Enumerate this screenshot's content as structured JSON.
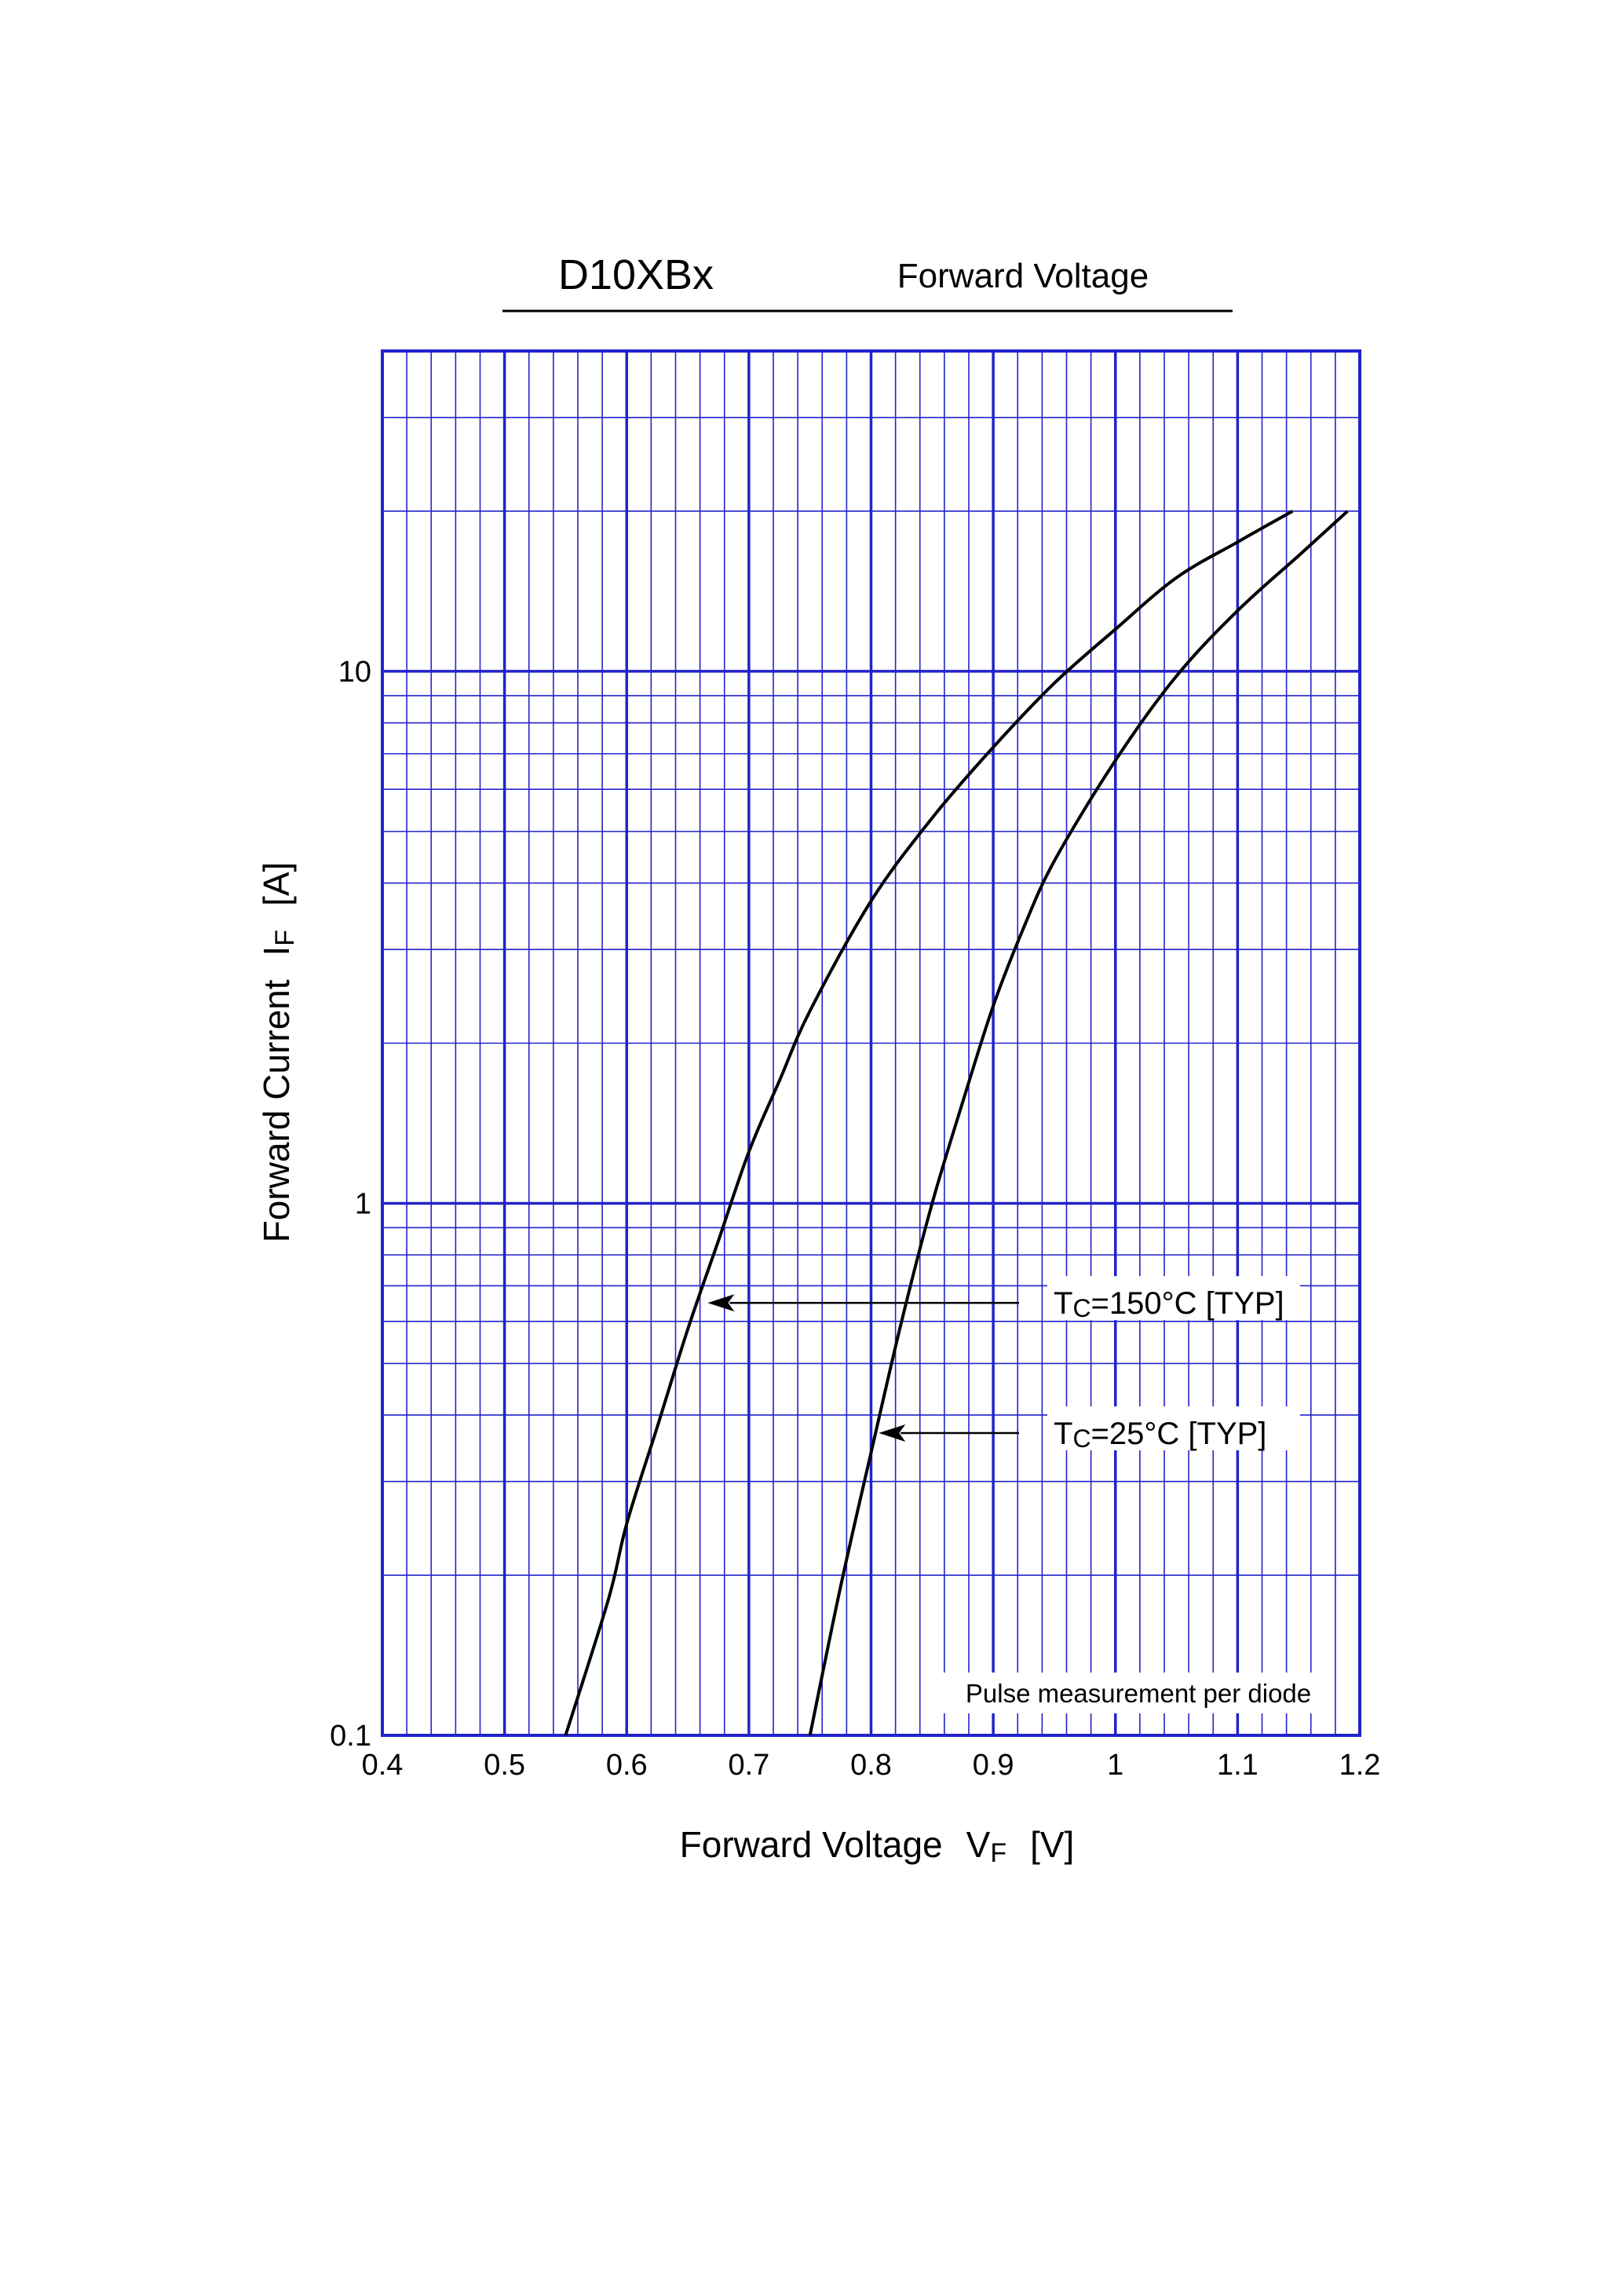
{
  "header": {
    "part_number": "D10XBx",
    "title": "Forward Voltage"
  },
  "chart_data": {
    "type": "line",
    "xlabel": "Forward Voltage",
    "xlabel_symbol": "V",
    "xlabel_subscript": "F",
    "xlabel_unit": "[V]",
    "ylabel": "Forward Current",
    "ylabel_symbol": "I",
    "ylabel_subscript": "F",
    "ylabel_unit": "[A]",
    "x_scale": "linear",
    "y_scale": "log",
    "xlim": [
      0.4,
      1.2
    ],
    "ylim": [
      0.1,
      40
    ],
    "x_ticks": [
      0.4,
      0.5,
      0.6,
      0.7,
      0.8,
      0.9,
      1.0,
      1.1,
      1.2
    ],
    "x_tick_labels": [
      "0.4",
      "0.5",
      "0.6",
      "0.7",
      "0.8",
      "0.9",
      "1",
      "1.1",
      "1.2"
    ],
    "y_ticks": [
      0.1,
      1,
      10
    ],
    "y_tick_labels": [
      "0.1",
      "1",
      "10"
    ],
    "grid": true,
    "grid_color": "#2222cc",
    "line_color": "#000000",
    "note": "Pulse measurement per diode",
    "series": [
      {
        "label_main": "T",
        "label_sub": "C",
        "label_rest": "=150°C [TYP]",
        "label_point": {
          "x": 0.665,
          "y": 0.65
        },
        "x": [
          0.55,
          0.585,
          0.6,
          0.625,
          0.65,
          0.675,
          0.7,
          0.725,
          0.75,
          0.8,
          0.85,
          0.9,
          0.95,
          1.0,
          1.05,
          1.1,
          1.145
        ],
        "y": [
          0.1,
          0.18,
          0.25,
          0.38,
          0.58,
          0.85,
          1.25,
          1.7,
          2.3,
          3.7,
          5.3,
          7.2,
          9.5,
          12.0,
          15.0,
          17.5,
          20.0
        ]
      },
      {
        "label_main": "T",
        "label_sub": "C",
        "label_rest": "=25°C [TYP]",
        "label_point": {
          "x": 0.805,
          "y": 0.37
        },
        "x": [
          0.75,
          0.775,
          0.8,
          0.825,
          0.85,
          0.875,
          0.9,
          0.925,
          0.95,
          1.0,
          1.05,
          1.1,
          1.15,
          1.19
        ],
        "y": [
          0.1,
          0.19,
          0.34,
          0.6,
          1.0,
          1.55,
          2.35,
          3.3,
          4.4,
          6.8,
          9.8,
          13.0,
          16.5,
          20.0
        ]
      }
    ]
  }
}
